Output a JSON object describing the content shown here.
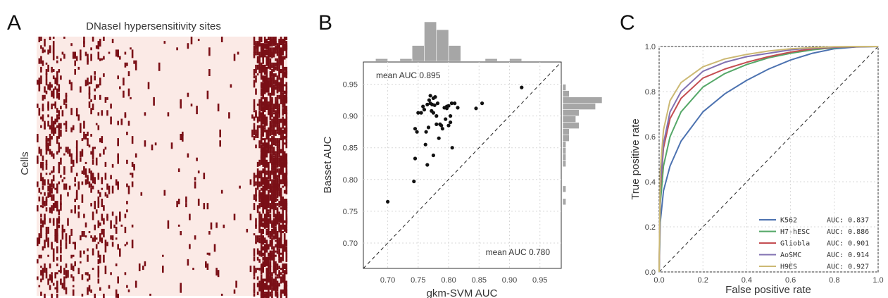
{
  "panels": {
    "a": {
      "letter": "A",
      "title": "DNaseI hypersensitivity sites",
      "ylabel": "Cells",
      "colors": {
        "background": "#fbeae6",
        "mark": "#7a0f16"
      }
    },
    "b": {
      "letter": "B",
      "xlabel": "gkm-SVM AUC",
      "ylabel": "Basset AUC",
      "ann_top": "mean AUC 0.895",
      "ann_bottom": "mean AUC 0.780"
    },
    "c": {
      "letter": "C",
      "xlabel": "False positive rate",
      "ylabel": "True positive rate"
    }
  },
  "chart_data": [
    {
      "type": "heatmap",
      "title": "DNaseI hypersensitivity sites",
      "ylabel": "Cells",
      "xlabel": "",
      "note": "binary matrix of cells x sites; dense columns at left and right edges"
    },
    {
      "type": "scatter",
      "xlabel": "gkm-SVM AUC",
      "ylabel": "Basset AUC",
      "xlim": [
        0.66,
        0.985
      ],
      "ylim": [
        0.66,
        0.985
      ],
      "xticks": [
        "0.70",
        "0.75",
        "0.80",
        "0.85",
        "0.90",
        "0.95"
      ],
      "yticks": [
        "0.70",
        "0.75",
        "0.80",
        "0.85",
        "0.90",
        "0.95"
      ],
      "grid": true,
      "diagonal": true,
      "points": [
        [
          0.7,
          0.765
        ],
        [
          0.743,
          0.797
        ],
        [
          0.745,
          0.833
        ],
        [
          0.745,
          0.88
        ],
        [
          0.748,
          0.875
        ],
        [
          0.75,
          0.905
        ],
        [
          0.755,
          0.905
        ],
        [
          0.758,
          0.915
        ],
        [
          0.76,
          0.91
        ],
        [
          0.762,
          0.855
        ],
        [
          0.763,
          0.875
        ],
        [
          0.765,
          0.823
        ],
        [
          0.765,
          0.918
        ],
        [
          0.767,
          0.882
        ],
        [
          0.768,
          0.925
        ],
        [
          0.77,
          0.92
        ],
        [
          0.77,
          0.932
        ],
        [
          0.772,
          0.908
        ],
        [
          0.773,
          0.918
        ],
        [
          0.775,
          0.928
        ],
        [
          0.775,
          0.905
        ],
        [
          0.775,
          0.838
        ],
        [
          0.777,
          0.917
        ],
        [
          0.778,
          0.93
        ],
        [
          0.78,
          0.9
        ],
        [
          0.78,
          0.887
        ],
        [
          0.782,
          0.92
        ],
        [
          0.784,
          0.865
        ],
        [
          0.786,
          0.887
        ],
        [
          0.788,
          0.885
        ],
        [
          0.79,
          0.88
        ],
        [
          0.793,
          0.913
        ],
        [
          0.795,
          0.895
        ],
        [
          0.797,
          0.912
        ],
        [
          0.797,
          0.915
        ],
        [
          0.8,
          0.916
        ],
        [
          0.8,
          0.885
        ],
        [
          0.803,
          0.89
        ],
        [
          0.803,
          0.9
        ],
        [
          0.805,
          0.92
        ],
        [
          0.806,
          0.85
        ],
        [
          0.81,
          0.92
        ],
        [
          0.815,
          0.913
        ],
        [
          0.845,
          0.912
        ],
        [
          0.855,
          0.92
        ],
        [
          0.92,
          0.945
        ]
      ],
      "annotations": [
        "mean AUC 0.895",
        "mean AUC 0.780"
      ],
      "x_histogram": {
        "bin_edges": [
          0.66,
          0.68,
          0.7,
          0.72,
          0.74,
          0.76,
          0.78,
          0.8,
          0.82,
          0.84,
          0.86,
          0.88,
          0.9,
          0.92,
          0.94
        ],
        "counts": [
          0,
          1,
          0,
          1,
          6,
          15,
          12,
          6,
          0,
          0,
          1,
          0,
          1,
          0
        ]
      },
      "y_histogram": {
        "bin_edges": [
          0.76,
          0.77,
          0.78,
          0.79,
          0.8,
          0.81,
          0.82,
          0.83,
          0.84,
          0.85,
          0.86,
          0.87,
          0.88,
          0.89,
          0.9,
          0.91,
          0.92,
          0.93,
          0.94,
          0.95
        ],
        "counts": [
          1,
          0,
          1,
          0,
          0,
          0,
          1,
          1,
          1,
          1,
          2,
          2,
          5,
          4,
          5,
          10,
          12,
          2,
          1
        ]
      }
    },
    {
      "type": "line",
      "xlabel": "False positive rate",
      "ylabel": "True positive rate",
      "xlim": [
        0.0,
        1.0
      ],
      "ylim": [
        0.0,
        1.0
      ],
      "xticks": [
        "0.0",
        "0.2",
        "0.4",
        "0.6",
        "0.8",
        "1.0"
      ],
      "yticks": [
        "0.0",
        "0.2",
        "0.4",
        "0.6",
        "0.8",
        "1.0"
      ],
      "grid": true,
      "diagonal": true,
      "legend": "bottom-right",
      "series": [
        {
          "name": "K562",
          "auc_label": "AUC: 0.837",
          "color": "#4c72b0",
          "x": [
            0,
            0.005,
            0.02,
            0.05,
            0.1,
            0.2,
            0.3,
            0.4,
            0.5,
            0.6,
            0.7,
            0.8,
            0.9,
            1.0
          ],
          "y": [
            0,
            0.22,
            0.36,
            0.47,
            0.58,
            0.71,
            0.79,
            0.85,
            0.9,
            0.94,
            0.97,
            0.99,
            0.998,
            1.0
          ]
        },
        {
          "name": "H7-hESC",
          "auc_label": "AUC: 0.886",
          "color": "#55a868",
          "x": [
            0,
            0.005,
            0.02,
            0.05,
            0.1,
            0.2,
            0.3,
            0.4,
            0.5,
            0.6,
            0.7,
            0.8,
            0.9,
            1.0
          ],
          "y": [
            0,
            0.3,
            0.47,
            0.6,
            0.71,
            0.82,
            0.88,
            0.92,
            0.95,
            0.97,
            0.985,
            0.995,
            0.999,
            1.0
          ]
        },
        {
          "name": "Gliobla",
          "auc_label": "AUC: 0.901",
          "color": "#c44e52",
          "x": [
            0,
            0.005,
            0.02,
            0.05,
            0.1,
            0.2,
            0.3,
            0.4,
            0.5,
            0.6,
            0.7,
            0.8,
            0.9,
            1.0
          ],
          "y": [
            0,
            0.36,
            0.55,
            0.68,
            0.77,
            0.86,
            0.9,
            0.93,
            0.955,
            0.975,
            0.99,
            0.997,
            0.999,
            1.0
          ]
        },
        {
          "name": "AoSMC",
          "auc_label": "AUC: 0.914",
          "color": "#8172b2",
          "x": [
            0,
            0.005,
            0.02,
            0.05,
            0.1,
            0.2,
            0.3,
            0.4,
            0.5,
            0.6,
            0.7,
            0.8,
            0.9,
            1.0
          ],
          "y": [
            0,
            0.38,
            0.57,
            0.71,
            0.8,
            0.89,
            0.93,
            0.955,
            0.97,
            0.985,
            0.993,
            0.998,
            1.0,
            1.0
          ]
        },
        {
          "name": "H9ES",
          "auc_label": "AUC: 0.927",
          "color": "#ccb974",
          "x": [
            0,
            0.005,
            0.02,
            0.05,
            0.1,
            0.2,
            0.3,
            0.4,
            0.5,
            0.6,
            0.7,
            0.8,
            0.9,
            1.0
          ],
          "y": [
            0,
            0.45,
            0.63,
            0.76,
            0.84,
            0.91,
            0.945,
            0.965,
            0.98,
            0.99,
            0.995,
            0.999,
            1.0,
            1.0
          ]
        }
      ]
    }
  ]
}
